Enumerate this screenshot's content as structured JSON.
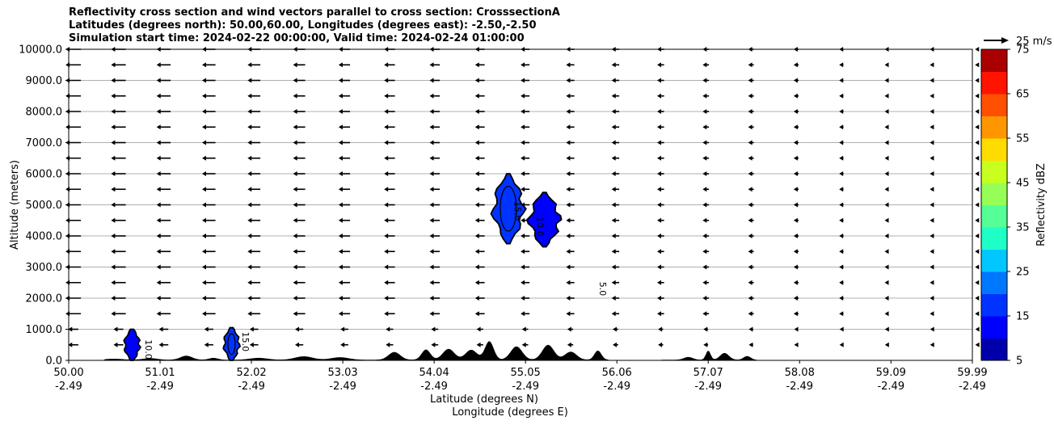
{
  "chart_data": {
    "type": "heatmap",
    "title": [
      "Reflectivity cross section and wind vectors parallel to cross section: CrosssectionA",
      "Latitudes (degrees north): 50.00,60.00, Longitudes (degrees east): -2.50,-2.50",
      "Simulation start time: 2024-02-22 00:00:00, Valid time: 2024-02-24 01:00:00"
    ],
    "ylabel": "Altitude (meters)",
    "xlabel_lat": "Latitude (degrees N)",
    "xlabel_lon": "Longitude (degrees E)",
    "ylim": [
      0,
      10000
    ],
    "xlim": [
      50.0,
      59.99
    ],
    "y_ticks": [
      "0.0",
      "1000.0",
      "2000.0",
      "3000.0",
      "4000.0",
      "5000.0",
      "6000.0",
      "7000.0",
      "8000.0",
      "9000.0",
      "10000.0"
    ],
    "x_ticks_lat": [
      "50.00",
      "51.01",
      "52.02",
      "53.03",
      "54.04",
      "55.05",
      "56.06",
      "57.07",
      "58.08",
      "59.09",
      "59.99"
    ],
    "x_ticks_lon": [
      "-2.49",
      "-2.49",
      "-2.49",
      "-2.49",
      "-2.49",
      "-2.49",
      "-2.49",
      "-2.49",
      "-2.49",
      "-2.49",
      "-2.49"
    ],
    "grid": "horizontal",
    "quiver_key": "25 m/s",
    "colorbar": {
      "label": "Reflectivity dBZ",
      "ticks": [
        "5",
        "15",
        "25",
        "35",
        "45",
        "55",
        "65",
        "75"
      ],
      "range": [
        5,
        75
      ],
      "colors": [
        "#0000aa",
        "#0000ff",
        "#0033ff",
        "#0077ff",
        "#00c8ff",
        "#1effc8",
        "#55ff96",
        "#96ff55",
        "#c8ff1e",
        "#ffdc00",
        "#ff9600",
        "#ff5000",
        "#ff1400",
        "#aa0000"
      ]
    },
    "reflectivity_cells": [
      {
        "lat": 50.7,
        "alt_bottom": 0,
        "alt_top": 1000,
        "dbz": 10
      },
      {
        "lat": 51.8,
        "alt_bottom": 0,
        "alt_top": 1050,
        "dbz": 15
      },
      {
        "lat": 54.86,
        "alt_bottom": 3750,
        "alt_top": 6000,
        "dbz": 15
      },
      {
        "lat": 55.26,
        "alt_bottom": 3650,
        "alt_top": 5400,
        "dbz": 10
      }
    ],
    "contour_labels": [
      "10.0",
      "15.0",
      "15.0",
      "10.0",
      "5.0"
    ],
    "terrain_max_alt": 600
  }
}
